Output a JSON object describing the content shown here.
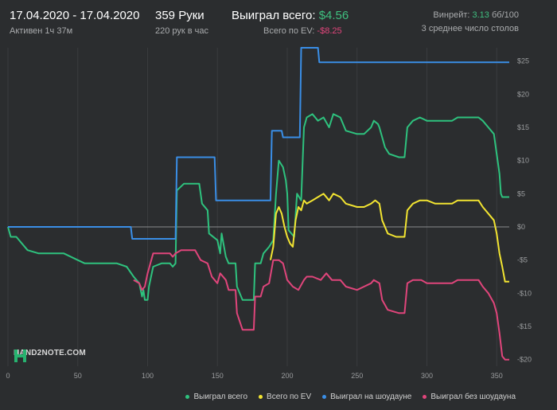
{
  "header": {
    "dates": "17.04.2020 - 17.04.2020",
    "active": "Активен 1ч 37м",
    "hands": "359 Руки",
    "hands_per_hour": "220 рук в час",
    "won_label": "Выиграл всего: ",
    "won_value": "$4.56",
    "ev_label": "Всего по EV: ",
    "ev_value": "-$8.25",
    "winrate_label": "Винрейт: ",
    "winrate_value": "3.13",
    "winrate_unit": " бб/100",
    "tables": "3 среднее число столов"
  },
  "logo": {
    "text": "HAND2NOTE.COM"
  },
  "legend": [
    {
      "name": "Выиграл всего",
      "color": "#2ec27e"
    },
    {
      "name": "Всего по EV",
      "color": "#f2e431"
    },
    {
      "name": "Выиграл на шоудауне",
      "color": "#3a8ee6"
    },
    {
      "name": "Выиграл без шоудауна",
      "color": "#e0457b"
    }
  ],
  "chart_data": {
    "type": "line",
    "xlim": [
      0,
      359
    ],
    "ylim": [
      -21,
      27
    ],
    "x_ticks": [
      0,
      50,
      100,
      150,
      200,
      250,
      300,
      350
    ],
    "y_ticks": [
      25,
      20,
      15,
      10,
      5,
      0,
      -5,
      -10,
      -15,
      -20
    ],
    "y_tick_labels": [
      "$25",
      "$20",
      "$15",
      "$10",
      "$5",
      "$0",
      "-$5",
      "-$10",
      "-$15",
      "-$20"
    ],
    "grid": "vertical",
    "legend_position": "bottom-right",
    "series": [
      {
        "name": "Выиграл всего",
        "color": "#2ec27e",
        "points": [
          [
            0,
            0
          ],
          [
            2,
            -1.5
          ],
          [
            6,
            -1.5
          ],
          [
            10,
            -2.5
          ],
          [
            14,
            -3.5
          ],
          [
            22,
            -4
          ],
          [
            30,
            -4
          ],
          [
            40,
            -4
          ],
          [
            50,
            -5
          ],
          [
            55,
            -5.5
          ],
          [
            60,
            -5.5
          ],
          [
            68,
            -5.5
          ],
          [
            78,
            -5.5
          ],
          [
            85,
            -6
          ],
          [
            90,
            -7.5
          ],
          [
            94,
            -8.5
          ],
          [
            96,
            -10.5
          ],
          [
            97,
            -9.5
          ],
          [
            98,
            -11
          ],
          [
            100,
            -11
          ],
          [
            101,
            -9
          ],
          [
            104,
            -6
          ],
          [
            110,
            -5.5
          ],
          [
            116,
            -5.5
          ],
          [
            118,
            -6
          ],
          [
            120,
            -5.5
          ],
          [
            121,
            5.5
          ],
          [
            126,
            6.5
          ],
          [
            134,
            6.5
          ],
          [
            137,
            6.5
          ],
          [
            139,
            3.5
          ],
          [
            143,
            2.5
          ],
          [
            144,
            -1
          ],
          [
            150,
            -2
          ],
          [
            152,
            -4
          ],
          [
            153,
            -1
          ],
          [
            156,
            -4.5
          ],
          [
            158,
            -5.5
          ],
          [
            163,
            -5.5
          ],
          [
            164,
            -9
          ],
          [
            168,
            -11
          ],
          [
            176,
            -11
          ],
          [
            177,
            -5.5
          ],
          [
            181,
            -5.5
          ],
          [
            183,
            -4
          ],
          [
            187,
            -3
          ],
          [
            190,
            -2
          ],
          [
            192,
            5
          ],
          [
            194,
            10
          ],
          [
            197,
            9
          ],
          [
            199,
            7
          ],
          [
            200,
            5
          ],
          [
            201,
            -0.5
          ],
          [
            203,
            -1
          ],
          [
            205,
            -1.5
          ],
          [
            207,
            5
          ],
          [
            210,
            4
          ],
          [
            212,
            15
          ],
          [
            214,
            16.5
          ],
          [
            218,
            17
          ],
          [
            222,
            16
          ],
          [
            226,
            16.5
          ],
          [
            230,
            15
          ],
          [
            233,
            17
          ],
          [
            238,
            16.5
          ],
          [
            242,
            14.5
          ],
          [
            250,
            14
          ],
          [
            255,
            14
          ],
          [
            260,
            15
          ],
          [
            262,
            16
          ],
          [
            265,
            15.5
          ],
          [
            266,
            15
          ],
          [
            270,
            12
          ],
          [
            273,
            11
          ],
          [
            280,
            10.5
          ],
          [
            284,
            10.5
          ],
          [
            286,
            15
          ],
          [
            290,
            16
          ],
          [
            295,
            16.5
          ],
          [
            300,
            16
          ],
          [
            308,
            16
          ],
          [
            312,
            16
          ],
          [
            318,
            16
          ],
          [
            322,
            16.5
          ],
          [
            330,
            16.5
          ],
          [
            337,
            16.5
          ],
          [
            340,
            16
          ],
          [
            344,
            15
          ],
          [
            348,
            14
          ],
          [
            350,
            11
          ],
          [
            352,
            8
          ],
          [
            353,
            5
          ],
          [
            354,
            4.5
          ],
          [
            359,
            4.5
          ]
        ]
      },
      {
        "name": "Всего по EV",
        "color": "#f2e431",
        "points": [
          [
            188,
            -5
          ],
          [
            190,
            -3
          ],
          [
            192,
            2
          ],
          [
            194,
            3
          ],
          [
            196,
            2
          ],
          [
            198,
            0
          ],
          [
            200,
            -1.5
          ],
          [
            202,
            -2.5
          ],
          [
            204,
            -3
          ],
          [
            206,
            1
          ],
          [
            208,
            3
          ],
          [
            210,
            2.5
          ],
          [
            212,
            4
          ],
          [
            214,
            3.5
          ],
          [
            218,
            4
          ],
          [
            222,
            4.5
          ],
          [
            226,
            5
          ],
          [
            230,
            4
          ],
          [
            233,
            5
          ],
          [
            238,
            4.5
          ],
          [
            242,
            3.5
          ],
          [
            250,
            3
          ],
          [
            255,
            3
          ],
          [
            260,
            3.5
          ],
          [
            263,
            4
          ],
          [
            266,
            3.5
          ],
          [
            268,
            1
          ],
          [
            272,
            -1
          ],
          [
            278,
            -1.5
          ],
          [
            284,
            -1.5
          ],
          [
            286,
            2.5
          ],
          [
            290,
            3.5
          ],
          [
            295,
            4
          ],
          [
            300,
            4
          ],
          [
            306,
            3.5
          ],
          [
            312,
            3.5
          ],
          [
            318,
            3.5
          ],
          [
            322,
            4
          ],
          [
            330,
            4
          ],
          [
            337,
            4
          ],
          [
            340,
            3
          ],
          [
            344,
            2
          ],
          [
            348,
            1
          ],
          [
            350,
            -1
          ],
          [
            352,
            -4
          ],
          [
            354,
            -6
          ],
          [
            356,
            -8.25
          ],
          [
            359,
            -8.25
          ]
        ]
      },
      {
        "name": "Выиграл на шоудауне",
        "color": "#3a8ee6",
        "points": [
          [
            0,
            0
          ],
          [
            88,
            0
          ],
          [
            89,
            -1.8
          ],
          [
            120,
            -1.8
          ],
          [
            121,
            10.5
          ],
          [
            148,
            10.5
          ],
          [
            149,
            4
          ],
          [
            188,
            4
          ],
          [
            189,
            14.5
          ],
          [
            196,
            14.5
          ],
          [
            197,
            13.5
          ],
          [
            209,
            13.5
          ],
          [
            210,
            27
          ],
          [
            222,
            27
          ],
          [
            223,
            24.8
          ],
          [
            359,
            24.8
          ]
        ]
      },
      {
        "name": "Выиграл без шоудауна",
        "color": "#e0457b",
        "points": [
          [
            90,
            -8
          ],
          [
            94,
            -8.5
          ],
          [
            96,
            -9.5
          ],
          [
            98,
            -9
          ],
          [
            100,
            -7
          ],
          [
            104,
            -4
          ],
          [
            110,
            -4
          ],
          [
            116,
            -4
          ],
          [
            118,
            -4.5
          ],
          [
            120,
            -4
          ],
          [
            124,
            -3.5
          ],
          [
            130,
            -3.5
          ],
          [
            134,
            -3.5
          ],
          [
            138,
            -5
          ],
          [
            143,
            -5.5
          ],
          [
            146,
            -7.5
          ],
          [
            150,
            -8.5
          ],
          [
            152,
            -7
          ],
          [
            156,
            -8
          ],
          [
            158,
            -9.5
          ],
          [
            163,
            -9.5
          ],
          [
            164,
            -13
          ],
          [
            168,
            -15.5
          ],
          [
            176,
            -15.5
          ],
          [
            177,
            -10.5
          ],
          [
            181,
            -10.5
          ],
          [
            183,
            -9
          ],
          [
            187,
            -8.5
          ],
          [
            190,
            -5
          ],
          [
            194,
            -5
          ],
          [
            197,
            -5.5
          ],
          [
            200,
            -8
          ],
          [
            204,
            -9
          ],
          [
            208,
            -9.5
          ],
          [
            212,
            -8
          ],
          [
            214,
            -7.5
          ],
          [
            218,
            -7.5
          ],
          [
            224,
            -8
          ],
          [
            228,
            -7
          ],
          [
            232,
            -8
          ],
          [
            238,
            -8
          ],
          [
            242,
            -9
          ],
          [
            250,
            -9.5
          ],
          [
            255,
            -9
          ],
          [
            260,
            -8.5
          ],
          [
            262,
            -8
          ],
          [
            266,
            -8.5
          ],
          [
            268,
            -11
          ],
          [
            272,
            -12.5
          ],
          [
            280,
            -13
          ],
          [
            284,
            -13
          ],
          [
            286,
            -8.5
          ],
          [
            290,
            -8
          ],
          [
            296,
            -8
          ],
          [
            300,
            -8.5
          ],
          [
            308,
            -8.5
          ],
          [
            312,
            -8.5
          ],
          [
            318,
            -8.5
          ],
          [
            322,
            -8
          ],
          [
            330,
            -8
          ],
          [
            337,
            -8
          ],
          [
            340,
            -9
          ],
          [
            344,
            -10
          ],
          [
            348,
            -11.5
          ],
          [
            350,
            -13
          ],
          [
            352,
            -16
          ],
          [
            354,
            -19.5
          ],
          [
            356,
            -20
          ],
          [
            359,
            -20
          ]
        ]
      }
    ]
  }
}
